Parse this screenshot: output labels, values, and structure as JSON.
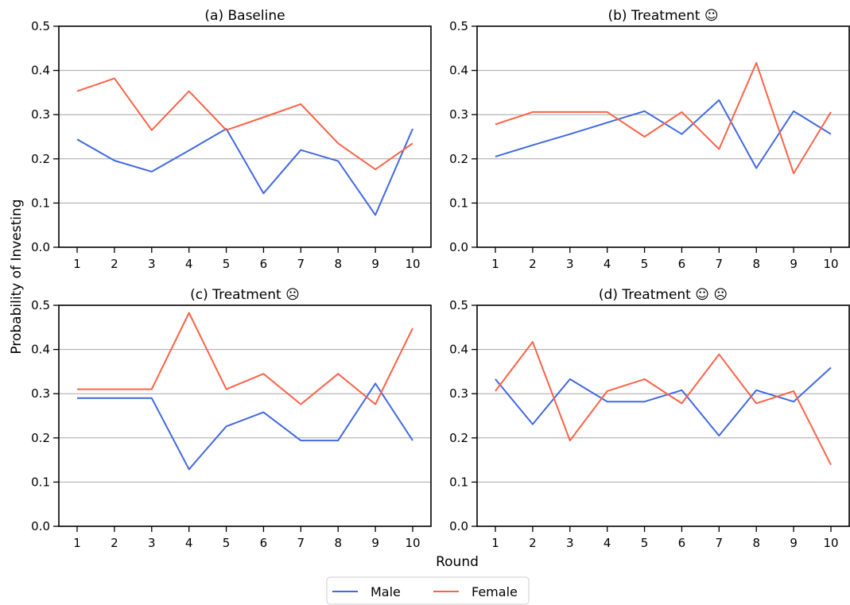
{
  "figure": {
    "ylabel": "Probability of Investing",
    "xlabel": "Round"
  },
  "colors": {
    "male": "#4169e1",
    "female": "#fa6347",
    "grid": "#a6a6a6"
  },
  "legend": {
    "placement": "bottom-center",
    "entries": [
      "Male",
      "Female"
    ]
  },
  "chart_data": [
    {
      "type": "line",
      "title": "(a) Baseline",
      "x": [
        1,
        2,
        3,
        4,
        5,
        6,
        7,
        8,
        9,
        10
      ],
      "ylim": [
        0,
        0.5
      ],
      "yticks": [
        "0.0",
        "0.1",
        "0.2",
        "0.3",
        "0.4",
        "0.5"
      ],
      "grid": "horizontal",
      "series": [
        {
          "name": "Male",
          "values": [
            0.244,
            0.196,
            0.171,
            0.219,
            0.268,
            0.122,
            0.22,
            0.195,
            0.073,
            0.268
          ]
        },
        {
          "name": "Female",
          "values": [
            0.353,
            0.382,
            0.265,
            0.353,
            0.265,
            0.294,
            0.324,
            0.235,
            0.176,
            0.235
          ]
        }
      ]
    },
    {
      "type": "line",
      "title": "(b) Treatment ☺",
      "x": [
        1,
        2,
        3,
        4,
        5,
        6,
        7,
        8,
        9,
        10
      ],
      "ylim": [
        0,
        0.5
      ],
      "yticks": [
        "0.0",
        "0.1",
        "0.2",
        "0.3",
        "0.4",
        "0.5"
      ],
      "grid": "horizontal",
      "series": [
        {
          "name": "Male",
          "values": [
            0.205,
            0.231,
            0.256,
            0.282,
            0.308,
            0.256,
            0.333,
            0.179,
            0.308,
            0.256
          ]
        },
        {
          "name": "Female",
          "values": [
            0.278,
            0.306,
            0.306,
            0.306,
            0.25,
            0.306,
            0.222,
            0.417,
            0.167,
            0.306
          ]
        }
      ]
    },
    {
      "type": "line",
      "title": "(c) Treatment ☹",
      "x": [
        1,
        2,
        3,
        4,
        5,
        6,
        7,
        8,
        9,
        10
      ],
      "ylim": [
        0,
        0.5
      ],
      "yticks": [
        "0.0",
        "0.1",
        "0.2",
        "0.3",
        "0.4",
        "0.5"
      ],
      "grid": "horizontal",
      "series": [
        {
          "name": "Male",
          "values": [
            0.29,
            0.29,
            0.29,
            0.129,
            0.226,
            0.258,
            0.194,
            0.194,
            0.323,
            0.194
          ]
        },
        {
          "name": "Female",
          "values": [
            0.31,
            0.31,
            0.31,
            0.483,
            0.31,
            0.345,
            0.276,
            0.345,
            0.276,
            0.448
          ]
        }
      ]
    },
    {
      "type": "line",
      "title": "(d) Treatment ☺ ☹",
      "x": [
        1,
        2,
        3,
        4,
        5,
        6,
        7,
        8,
        9,
        10
      ],
      "ylim": [
        0,
        0.5
      ],
      "yticks": [
        "0.0",
        "0.1",
        "0.2",
        "0.3",
        "0.4",
        "0.5"
      ],
      "grid": "horizontal",
      "series": [
        {
          "name": "Male",
          "values": [
            0.333,
            0.231,
            0.333,
            0.282,
            0.282,
            0.308,
            0.205,
            0.308,
            0.282,
            0.359
          ]
        },
        {
          "name": "Female",
          "values": [
            0.306,
            0.417,
            0.194,
            0.306,
            0.333,
            0.278,
            0.389,
            0.278,
            0.306,
            0.139
          ]
        }
      ]
    }
  ]
}
